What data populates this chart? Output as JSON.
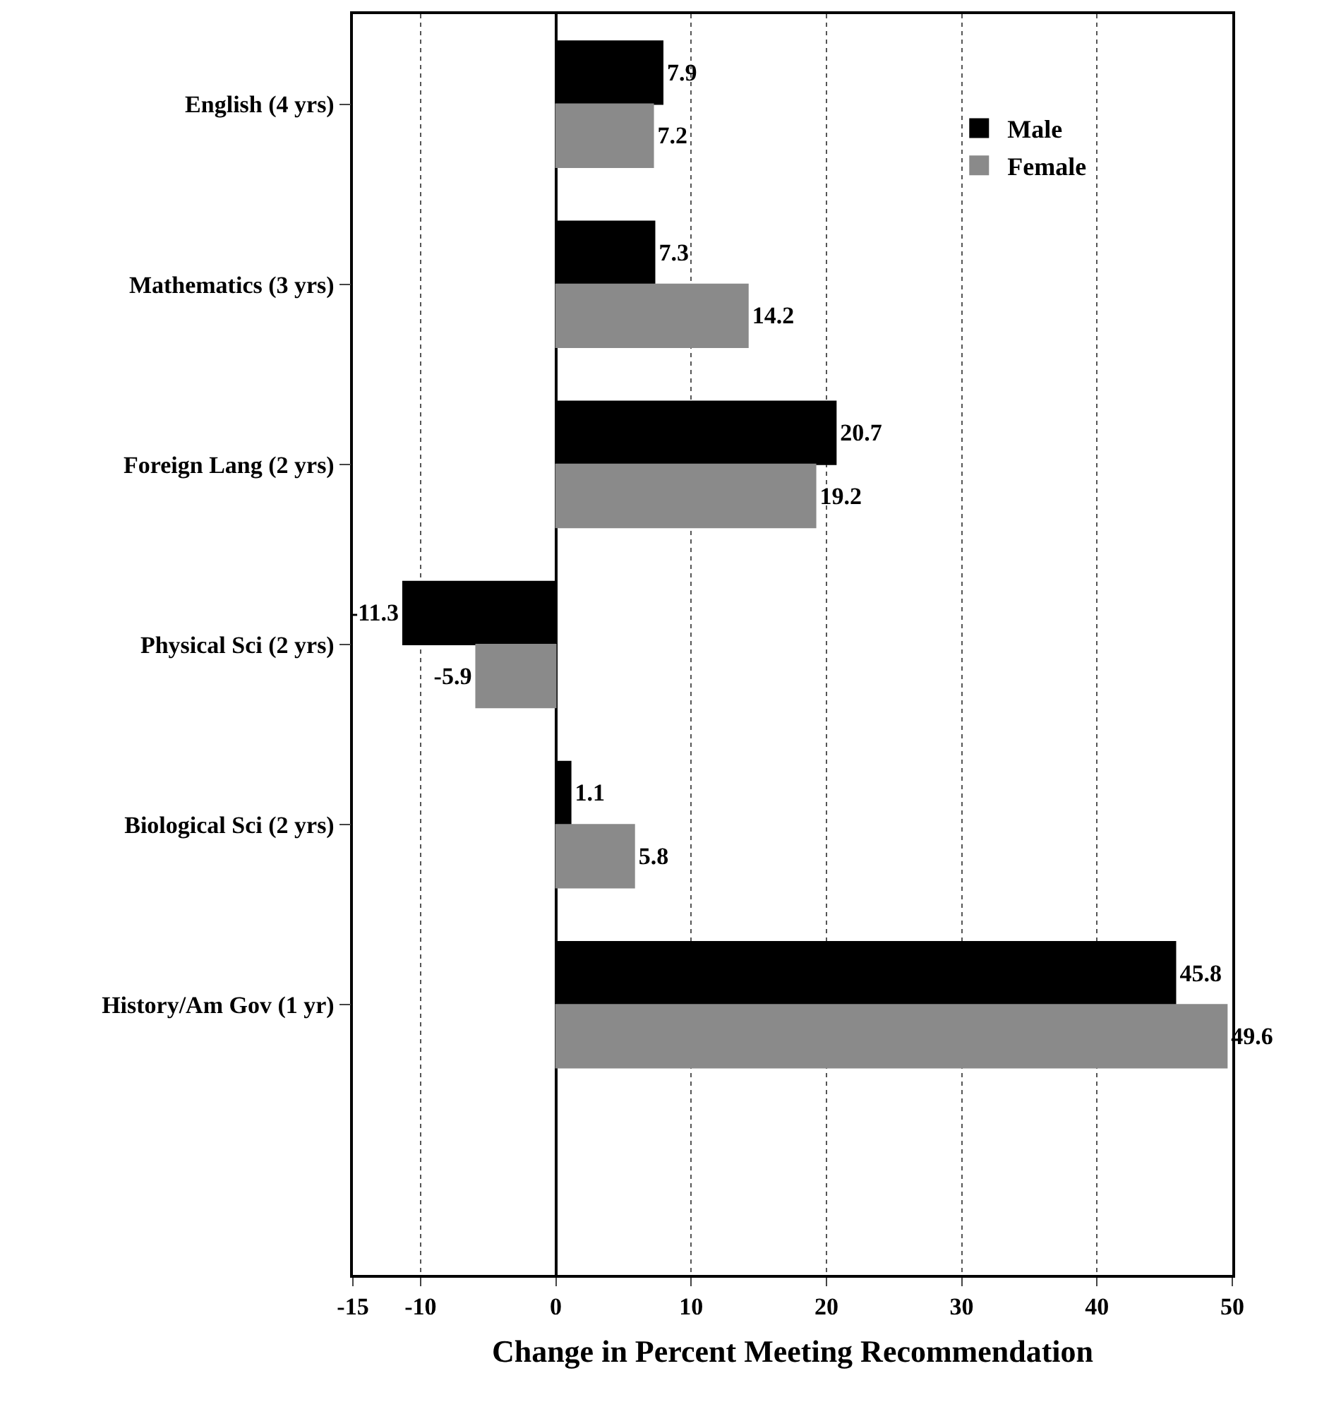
{
  "chart_data": {
    "type": "bar",
    "orientation": "horizontal",
    "xlabel": "Change in Percent Meeting Recommendation",
    "categories": [
      "English (4 yrs)",
      "Mathematics (3 yrs)",
      "Foreign Lang (2 yrs)",
      "Physical Sci (2 yrs)",
      "Biological Sci (2 yrs)",
      "History/Am Gov (1 yr)"
    ],
    "series": [
      {
        "name": "Male",
        "color": "#000000",
        "values": [
          7.9,
          7.3,
          20.7,
          -11.3,
          1.1,
          45.8
        ]
      },
      {
        "name": "Female",
        "color": "#8a8a8a",
        "values": [
          7.2,
          14.2,
          19.2,
          -5.9,
          5.8,
          49.6
        ]
      }
    ],
    "xlim": [
      -15,
      50
    ],
    "xticks": [
      -15,
      -10,
      0,
      10,
      20,
      30,
      40,
      50
    ],
    "grid": "x",
    "legend": "top right",
    "data_labels": true
  }
}
